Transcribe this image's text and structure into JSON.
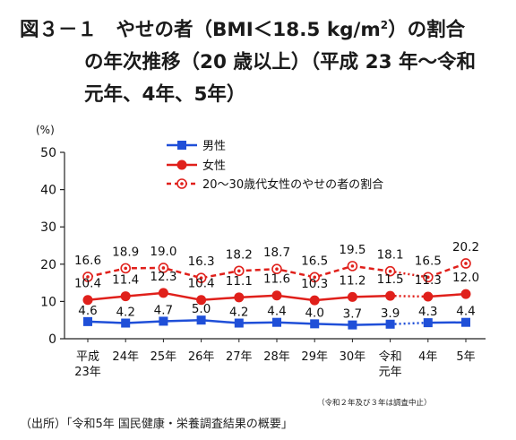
{
  "title": {
    "line1a": "図３－１　やせの者（BMI＜18.5 kg/m",
    "line1sup": "2",
    "line1b": "）の割合",
    "line2": "の年次推移（20 歳以上）（平成 23 年～令和",
    "line3": "元年、4年、5年）"
  },
  "chart_data": {
    "type": "line",
    "ylabel": "(%)",
    "ylim": [
      0,
      50
    ],
    "yticks": [
      0,
      10,
      20,
      30,
      40,
      50
    ],
    "categories": [
      "平成\n23年",
      "24年",
      "25年",
      "26年",
      "27年",
      "28年",
      "29年",
      "30年",
      "令和\n元年",
      "4年",
      "5年"
    ],
    "gap_after_index": 8,
    "series": [
      {
        "name": "男性",
        "color": "#1f4fd8",
        "marker": "square",
        "dashed": false,
        "values": [
          4.6,
          4.2,
          4.7,
          5.0,
          4.2,
          4.4,
          4.0,
          3.7,
          3.9,
          4.3,
          4.4
        ]
      },
      {
        "name": "女性",
        "color": "#e0201b",
        "marker": "circle",
        "dashed": false,
        "values": [
          10.4,
          11.4,
          12.3,
          10.4,
          11.1,
          11.6,
          10.3,
          11.2,
          11.5,
          11.3,
          12.0
        ]
      },
      {
        "name": "20～30歳代女性のやせの者の割合",
        "color": "#e0201b",
        "marker": "ring",
        "dashed": true,
        "values": [
          16.6,
          18.9,
          19.0,
          16.3,
          18.2,
          18.7,
          16.5,
          19.5,
          18.1,
          16.5,
          20.2
        ]
      }
    ],
    "legend_position": "top-left",
    "grid": false
  },
  "footnote": "（令和２年及び３年は調査中止）",
  "source": "（出所）「令和5年 国民健康・栄養調査結果の概要」"
}
